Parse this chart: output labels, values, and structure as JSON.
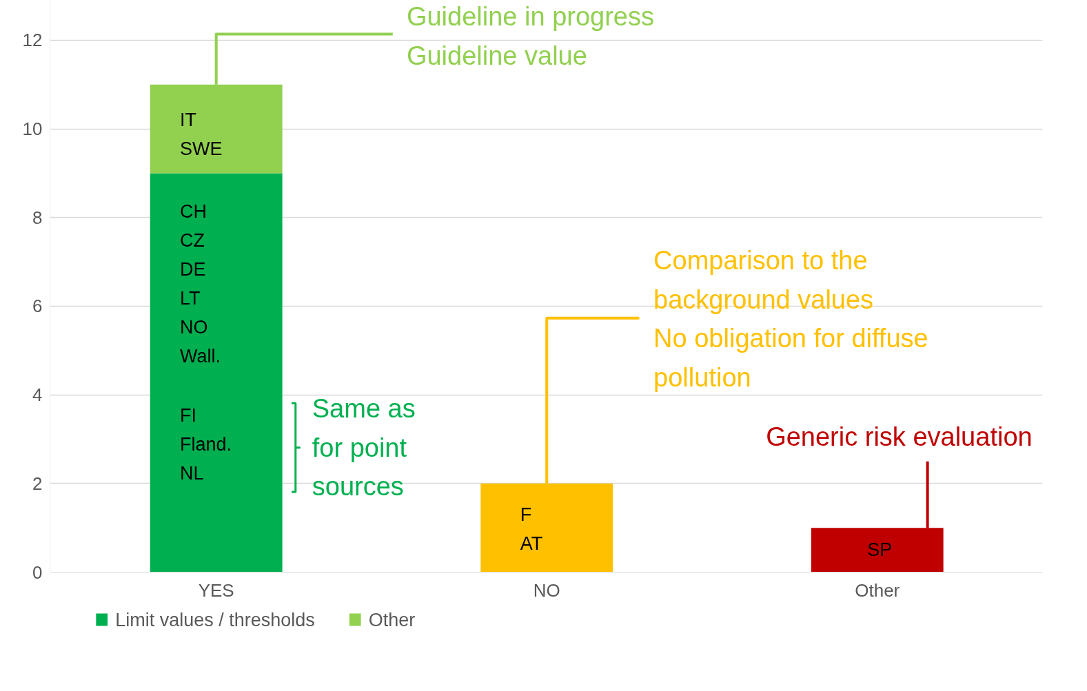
{
  "chart_data": {
    "type": "bar",
    "stacked": true,
    "categories": [
      "YES",
      "NO",
      "Other"
    ],
    "series": [
      {
        "name": "Limit values / thresholds",
        "color": "#00b050",
        "colors": [
          null,
          "#ffc000",
          "#c00000"
        ],
        "values": [
          9,
          2,
          1
        ]
      },
      {
        "name": "Other",
        "color": "#92d050",
        "values": [
          2,
          null,
          null
        ]
      }
    ],
    "ylim": [
      0,
      12.9
    ],
    "yticks": [
      0,
      2,
      4,
      6,
      8,
      10,
      12
    ],
    "grid": "y",
    "legend": "bottom left",
    "annotations": [
      "IT\nSWE",
      "CH\nCZ\nDE\nLT\nNO\nWall.",
      "FI\nFland.\nNL",
      {
        "text": "Guideline in progress\nGuideline value",
        "x": "YES",
        "y": 11
      },
      "Same as\nfor point\nsources",
      "F\nAT",
      {
        "text": "Comparison to the\nbackground values\nNo obligation for diffuse\npollution",
        "x": "NO",
        "y": 2
      },
      "SP",
      {
        "text": "Generic risk evaluation",
        "x": "Other",
        "y": 1
      }
    ]
  }
}
